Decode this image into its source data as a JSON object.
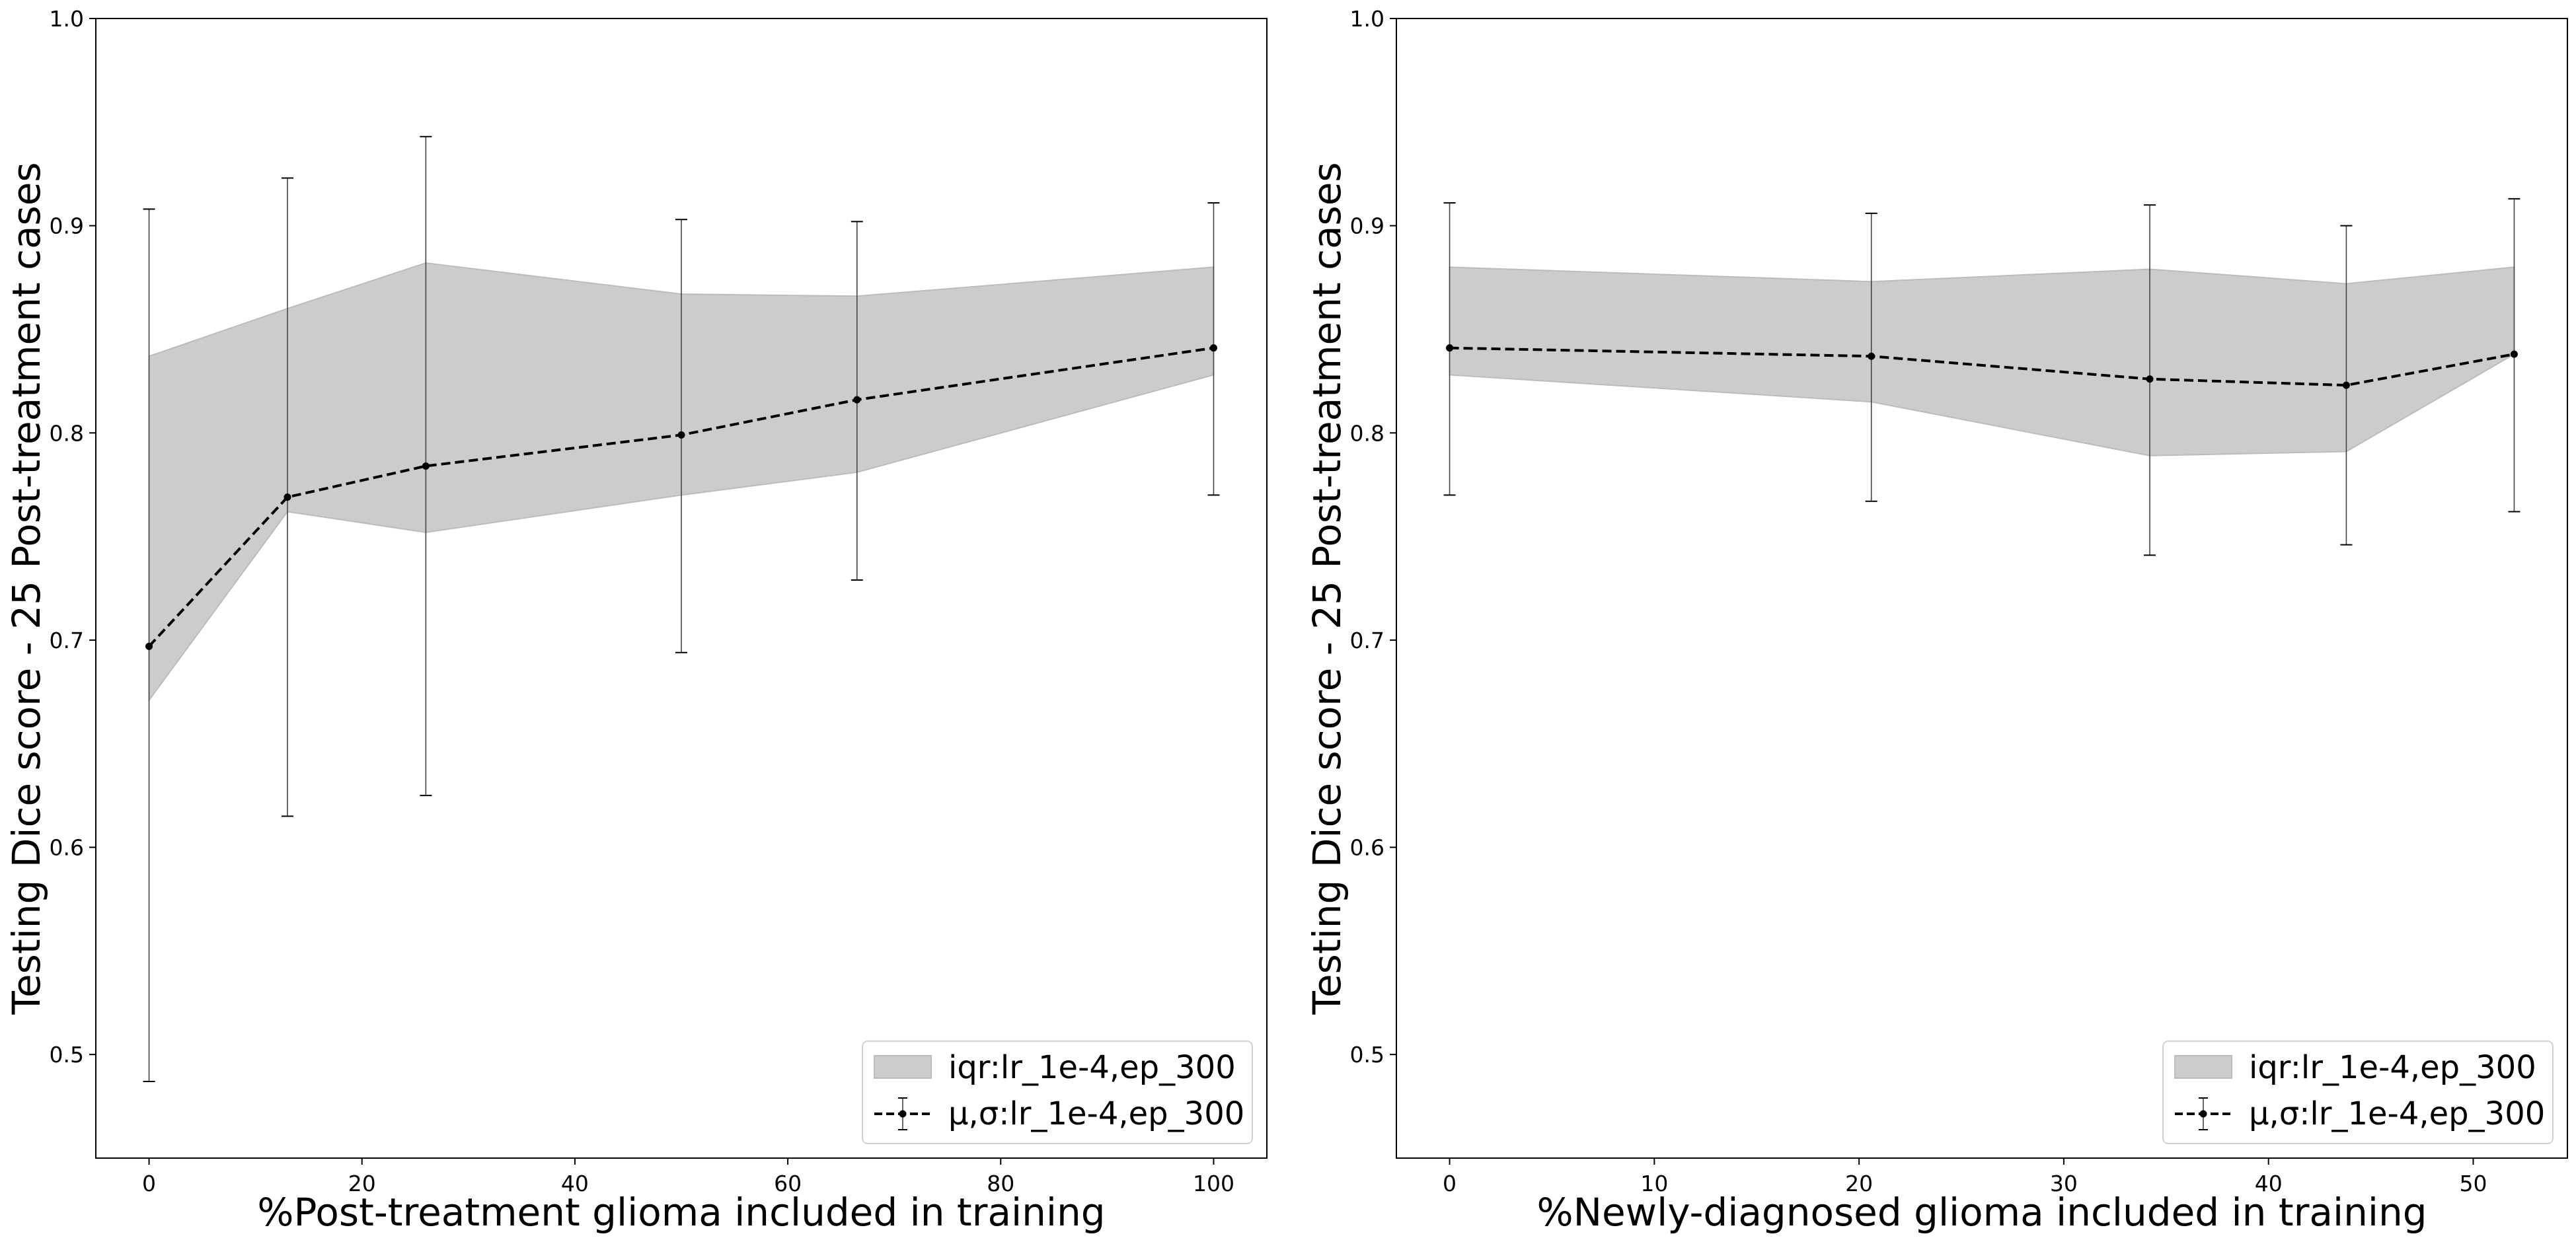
{
  "chart_data": [
    {
      "type": "line",
      "xlabel": "%Post-treatment glioma included in training",
      "ylabel": "Testing Dice score - 25 Post-treatment cases",
      "xlim": [
        -5,
        105
      ],
      "ylim": [
        0.45,
        1.0
      ],
      "xticks": [
        0,
        20,
        40,
        60,
        80,
        100
      ],
      "xtick_labels": [
        "0",
        "20",
        "40",
        "60",
        "80",
        "100"
      ],
      "yticks": [
        0.5,
        0.6,
        0.7,
        0.8,
        0.9,
        1.0
      ],
      "ytick_labels": [
        "0.5",
        "0.6",
        "0.7",
        "0.8",
        "0.9",
        "1.0"
      ],
      "grid": false,
      "legend_position": "lower-right",
      "x": [
        0,
        13,
        26,
        50,
        66.5,
        100
      ],
      "series": [
        {
          "name": "iqr:lr_1e-4,ep_300",
          "kind": "band",
          "lower": [
            0.671,
            0.762,
            0.752,
            0.77,
            0.781,
            0.828
          ],
          "upper": [
            0.837,
            0.86,
            0.882,
            0.867,
            0.866,
            0.88
          ],
          "color": "#cccccc"
        },
        {
          "name": "μ,σ:lr_1e-4,ep_300",
          "kind": "errorbar",
          "mean": [
            0.697,
            0.769,
            0.784,
            0.799,
            0.816,
            0.841
          ],
          "err_low": [
            0.487,
            0.615,
            0.625,
            0.694,
            0.729,
            0.77
          ],
          "err_high": [
            0.908,
            0.923,
            0.943,
            0.903,
            0.902,
            0.911
          ],
          "color": "#000000"
        }
      ]
    },
    {
      "type": "line",
      "xlabel": "%Newly-diagnosed glioma included in training",
      "ylabel": "Testing Dice score - 25 Post-treatment cases",
      "xlim": [
        -2.6,
        54.6
      ],
      "ylim": [
        0.45,
        1.0
      ],
      "xticks": [
        0,
        10,
        20,
        30,
        40,
        50
      ],
      "xtick_labels": [
        "0",
        "10",
        "20",
        "30",
        "40",
        "50"
      ],
      "yticks": [
        0.5,
        0.6,
        0.7,
        0.8,
        0.9,
        1.0
      ],
      "ytick_labels": [
        "0.5",
        "0.6",
        "0.7",
        "0.8",
        "0.9",
        "1.0"
      ],
      "grid": false,
      "legend_position": "lower-right",
      "x": [
        0,
        20.6,
        34.2,
        43.8,
        52
      ],
      "series": [
        {
          "name": "iqr:lr_1e-4,ep_300",
          "kind": "band",
          "lower": [
            0.828,
            0.815,
            0.789,
            0.791,
            0.838
          ],
          "upper": [
            0.88,
            0.873,
            0.879,
            0.872,
            0.88
          ],
          "color": "#cccccc"
        },
        {
          "name": "μ,σ:lr_1e-4,ep_300",
          "kind": "errorbar",
          "mean": [
            0.841,
            0.837,
            0.826,
            0.823,
            0.838
          ],
          "err_low": [
            0.77,
            0.767,
            0.741,
            0.746,
            0.762
          ],
          "err_high": [
            0.911,
            0.906,
            0.91,
            0.9,
            0.913
          ],
          "color": "#000000"
        }
      ]
    }
  ]
}
